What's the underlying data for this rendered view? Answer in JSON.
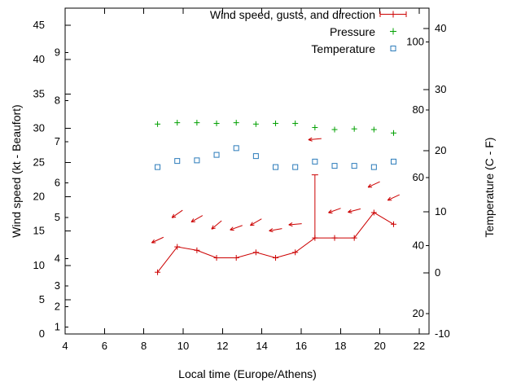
{
  "chart_data": {
    "type": "line",
    "title": "",
    "xlabel": "Local time (Europe/Athens)",
    "ylabel": "Wind speed (kt - Beaufort)",
    "y2label": "Temperature (C - F)",
    "legend_position": "top-right-inside",
    "grid": false,
    "background": "#ffffff",
    "axis_color": "#000000",
    "x_axis": {
      "min": 4,
      "max": 22.5,
      "ticks": [
        4,
        6,
        8,
        10,
        12,
        14,
        16,
        18,
        20,
        22
      ]
    },
    "y_axis_kt": {
      "min": 0,
      "max": 47.5,
      "ticks": [
        0,
        5,
        10,
        15,
        20,
        25,
        30,
        35,
        40,
        45
      ]
    },
    "y_axis_beaufort_ticks": [
      {
        "label": "1",
        "kt": 1
      },
      {
        "label": "2",
        "kt": 4
      },
      {
        "label": "3",
        "kt": 7
      },
      {
        "label": "4",
        "kt": 11
      },
      {
        "label": "5",
        "kt": 17
      },
      {
        "label": "6",
        "kt": 22
      },
      {
        "label": "7",
        "kt": 28
      },
      {
        "label": "8",
        "kt": 34
      },
      {
        "label": "9",
        "kt": 41
      }
    ],
    "y2_axis_c": {
      "min": -10,
      "max": 43.3,
      "ticks": [
        -10,
        0,
        10,
        20,
        30,
        40
      ]
    },
    "y2_axis_f_ticks": [
      20,
      40,
      60,
      80,
      100
    ],
    "x": [
      8.7,
      9.7,
      10.7,
      11.7,
      12.7,
      13.7,
      14.7,
      15.7,
      16.7,
      17.7,
      18.7,
      19.7,
      20.7
    ],
    "series": [
      {
        "name": "Wind speed, gusts, and direction",
        "color": "#cc0000",
        "marker": "plus",
        "style": "line+markers",
        "axis": "kt",
        "values": [
          9,
          12.7,
          12.2,
          11.1,
          11.1,
          11.9,
          11.1,
          11.9,
          14,
          14,
          14,
          17.7,
          16
        ]
      },
      {
        "name": "Pressure",
        "color": "#00a000",
        "marker": "plus",
        "style": "markers",
        "axis": "kt",
        "values": [
          30.6,
          30.8,
          30.8,
          30.7,
          30.8,
          30.6,
          30.7,
          30.7,
          30.1,
          29.8,
          29.9,
          29.8,
          29.3
        ]
      },
      {
        "name": "Temperature",
        "color": "#2b7bba",
        "marker": "open-square",
        "style": "markers",
        "axis": "c",
        "values": [
          17.3,
          18.3,
          18.4,
          19.3,
          20.4,
          19.1,
          17.3,
          17.3,
          18.2,
          17.5,
          17.5,
          17.3,
          18.2
        ]
      }
    ],
    "gust_spike": {
      "x": 16.7,
      "from_kt": 14,
      "to_kt": 23.2
    },
    "wind_arrows": [
      {
        "x": 8.7,
        "kt": 13.7,
        "angle_deg": 205
      },
      {
        "x": 9.7,
        "kt": 17.5,
        "angle_deg": 215
      },
      {
        "x": 10.7,
        "kt": 16.8,
        "angle_deg": 210
      },
      {
        "x": 11.7,
        "kt": 15.9,
        "angle_deg": 220
      },
      {
        "x": 12.7,
        "kt": 15.5,
        "angle_deg": 200
      },
      {
        "x": 13.7,
        "kt": 16.3,
        "angle_deg": 210
      },
      {
        "x": 14.7,
        "kt": 15.2,
        "angle_deg": 190
      },
      {
        "x": 15.7,
        "kt": 16.0,
        "angle_deg": 185
      },
      {
        "x": 16.7,
        "kt": 28.4,
        "angle_deg": 185
      },
      {
        "x": 17.7,
        "kt": 18.0,
        "angle_deg": 200
      },
      {
        "x": 18.7,
        "kt": 18.0,
        "angle_deg": 195
      },
      {
        "x": 19.7,
        "kt": 21.8,
        "angle_deg": 205
      },
      {
        "x": 20.7,
        "kt": 19.9,
        "angle_deg": 205
      }
    ]
  }
}
